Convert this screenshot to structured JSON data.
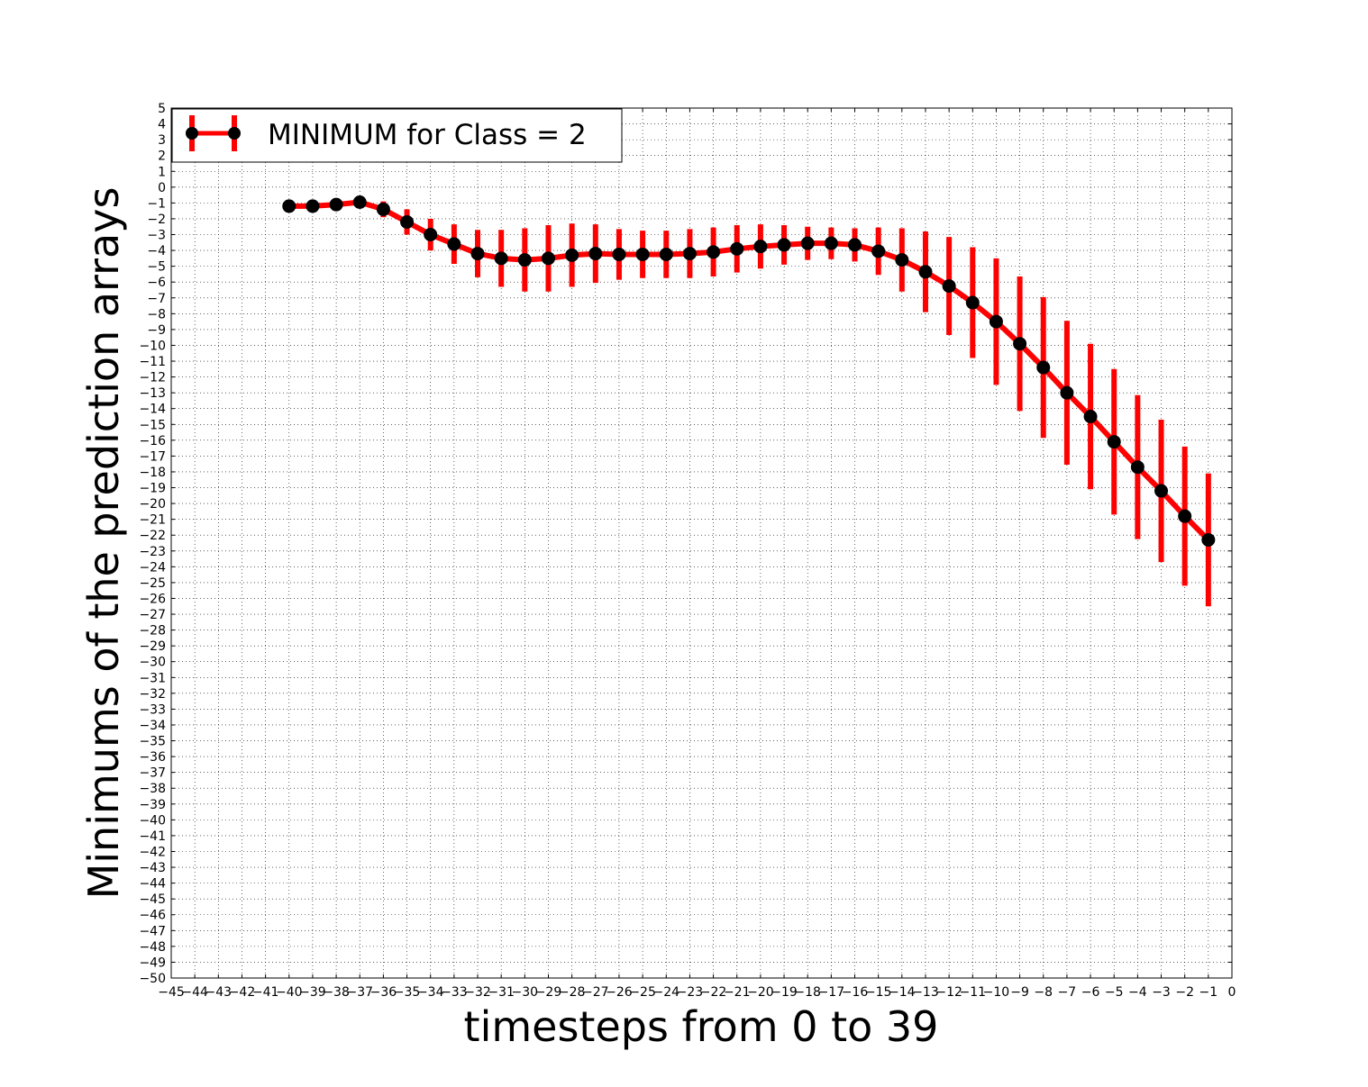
{
  "chart_data": {
    "type": "line",
    "title": "",
    "xlabel": "timesteps from 0 to 39",
    "ylabel": "Minimums of the prediction arrays",
    "xlim": [
      -45,
      0
    ],
    "ylim": [
      -50,
      5
    ],
    "grid": true,
    "legend_position": "top-left",
    "series": [
      {
        "name": "MINIMUM for Class = 2",
        "color": "#ff0000",
        "marker_color": "#000000",
        "error_bars": true,
        "x": [
          -40,
          -39,
          -38,
          -37,
          -36,
          -35,
          -34,
          -33,
          -32,
          -31,
          -30,
          -29,
          -28,
          -27,
          -26,
          -25,
          -24,
          -23,
          -22,
          -21,
          -20,
          -19,
          -18,
          -17,
          -16,
          -15,
          -14,
          -13,
          -12,
          -11,
          -10,
          -9,
          -8,
          -7,
          -6,
          -5,
          -4,
          -3,
          -2,
          -1
        ],
        "y": [
          -1.2,
          -1.2,
          -1.1,
          -0.95,
          -1.4,
          -2.2,
          -3.0,
          -3.6,
          -4.2,
          -4.5,
          -4.6,
          -4.5,
          -4.3,
          -4.2,
          -4.25,
          -4.25,
          -4.25,
          -4.2,
          -4.1,
          -3.9,
          -3.75,
          -3.65,
          -3.55,
          -3.55,
          -3.65,
          -4.05,
          -4.6,
          -5.35,
          -6.25,
          -7.3,
          -8.5,
          -9.9,
          -11.4,
          -13.0,
          -14.5,
          -16.1,
          -17.7,
          -19.2,
          -20.8,
          -22.3
        ],
        "error": [
          0.05,
          0.05,
          0.05,
          0.05,
          0.5,
          0.8,
          1.0,
          1.25,
          1.5,
          1.8,
          2.0,
          2.1,
          2.0,
          1.85,
          1.6,
          1.5,
          1.5,
          1.55,
          1.55,
          1.5,
          1.4,
          1.25,
          1.05,
          1.0,
          1.05,
          1.5,
          2.0,
          2.55,
          3.1,
          3.5,
          4.0,
          4.25,
          4.45,
          4.55,
          4.6,
          4.6,
          4.55,
          4.5,
          4.4,
          4.2
        ]
      }
    ]
  }
}
